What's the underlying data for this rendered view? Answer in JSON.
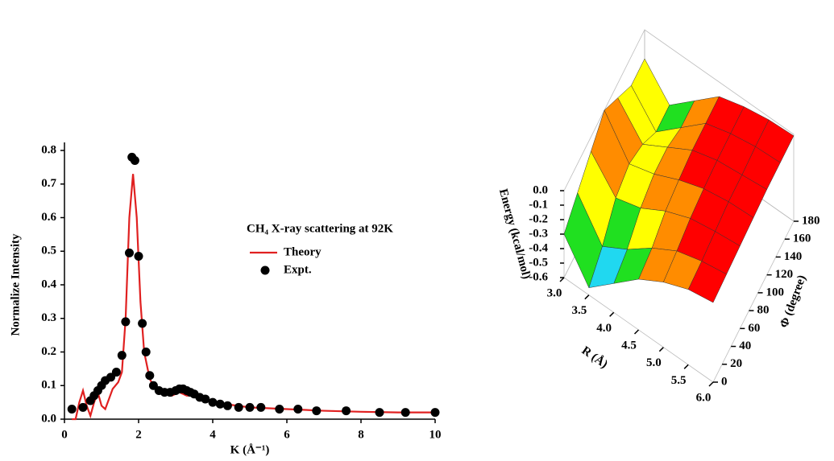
{
  "chart_data": [
    {
      "type": "line",
      "xlabel": "K (Å⁻¹)",
      "ylabel": "Normalize Intensity",
      "legend_title": "CH₄ X-ray scattering at 92K",
      "xlim": [
        0,
        10
      ],
      "ylim": [
        0,
        0.8
      ],
      "xticks": [
        0,
        2,
        4,
        6,
        8,
        10
      ],
      "yticks": [
        {
          "value": 0,
          "label": "0.0"
        },
        0.1,
        0.2,
        0.3,
        0.4,
        0.5,
        0.6,
        0.7,
        0.8
      ],
      "series": [
        {
          "name": "Theory",
          "color": "#e02020",
          "mode": "line",
          "x": [
            0.2,
            0.3,
            0.4,
            0.5,
            0.6,
            0.7,
            0.8,
            0.9,
            1.0,
            1.1,
            1.2,
            1.3,
            1.45,
            1.55,
            1.65,
            1.75,
            1.85,
            1.95,
            2.05,
            2.15,
            2.3,
            2.5,
            2.7,
            2.9,
            3.1,
            3.3,
            3.5,
            4,
            5,
            6,
            7,
            8,
            9,
            10
          ],
          "values": [
            0.0,
            0.0,
            0.05,
            0.085,
            0.04,
            0.01,
            0.05,
            0.08,
            0.04,
            0.03,
            0.06,
            0.09,
            0.11,
            0.14,
            0.3,
            0.6,
            0.73,
            0.6,
            0.35,
            0.2,
            0.12,
            0.08,
            0.075,
            0.07,
            0.08,
            0.07,
            0.07,
            0.05,
            0.035,
            0.03,
            0.025,
            0.022,
            0.02,
            0.02
          ]
        },
        {
          "name": "Expt.",
          "color": "#000000",
          "mode": "markers",
          "x": [
            0.2,
            0.5,
            0.7,
            0.8,
            0.9,
            1.0,
            1.1,
            1.25,
            1.4,
            1.55,
            1.65,
            1.75,
            1.82,
            1.9,
            2.0,
            2.1,
            2.2,
            2.3,
            2.4,
            2.55,
            2.7,
            2.85,
            3.0,
            3.1,
            3.2,
            3.3,
            3.4,
            3.5,
            3.65,
            3.8,
            4.0,
            4.2,
            4.4,
            4.7,
            5.0,
            5.3,
            5.8,
            6.3,
            6.8,
            7.6,
            8.5,
            9.2,
            10.0
          ],
          "values": [
            0.03,
            0.035,
            0.055,
            0.07,
            0.085,
            0.1,
            0.115,
            0.125,
            0.14,
            0.19,
            0.29,
            0.495,
            0.78,
            0.77,
            0.485,
            0.285,
            0.2,
            0.13,
            0.1,
            0.085,
            0.08,
            0.08,
            0.085,
            0.09,
            0.09,
            0.085,
            0.08,
            0.075,
            0.065,
            0.06,
            0.05,
            0.045,
            0.04,
            0.035,
            0.035,
            0.035,
            0.03,
            0.03,
            0.025,
            0.025,
            0.02,
            0.02,
            0.02
          ]
        }
      ]
    },
    {
      "type": "surface",
      "xlabel": "R (Å)",
      "ylabel": "Φ (degree)",
      "zlabel": "Energy (kcal/mol)",
      "xlim": [
        3,
        6
      ],
      "ylim": [
        0,
        180
      ],
      "zlim": [
        -0.6,
        0
      ],
      "xticks": [
        {
          "value": 3,
          "label": "3.0"
        },
        3.5,
        {
          "value": 4,
          "label": "4.0"
        },
        4.5,
        {
          "value": 5,
          "label": "5.0"
        },
        5.5,
        {
          "value": 6,
          "label": "6.0"
        }
      ],
      "yticks": [
        0,
        20,
        40,
        60,
        80,
        100,
        120,
        140,
        160,
        180
      ],
      "zticks": [
        {
          "value": 0,
          "label": "0.0"
        },
        -0.1,
        -0.2,
        -0.3,
        -0.4,
        -0.5,
        -0.6
      ],
      "colors": [
        "#1a3cff",
        "#20d8f0",
        "#20e020",
        "#ffff00",
        "#ff8c00",
        "#ff0000"
      ],
      "x": [
        3.0,
        3.5,
        4.0,
        4.5,
        5.0,
        5.5,
        6.0
      ],
      "y": [
        0,
        30,
        60,
        90,
        120,
        150,
        180
      ],
      "z": [
        [
          -0.3,
          -0.2,
          -0.1,
          0.0,
          -0.1,
          -0.2,
          -0.2
        ],
        [
          -0.55,
          -0.45,
          -0.3,
          -0.25,
          -0.3,
          -0.4,
          -0.4
        ],
        [
          -0.4,
          -0.35,
          -0.25,
          -0.2,
          -0.2,
          -0.25,
          -0.25
        ],
        [
          -0.25,
          -0.22,
          -0.15,
          -0.12,
          -0.1,
          -0.1,
          -0.1
        ],
        [
          -0.15,
          -0.12,
          -0.08,
          -0.06,
          -0.05,
          -0.05,
          -0.05
        ],
        [
          -0.08,
          -0.07,
          -0.05,
          -0.03,
          -0.03,
          -0.02,
          -0.02
        ],
        [
          -0.05,
          -0.04,
          -0.03,
          -0.02,
          -0.01,
          -0.01,
          -0.01
        ]
      ]
    }
  ]
}
